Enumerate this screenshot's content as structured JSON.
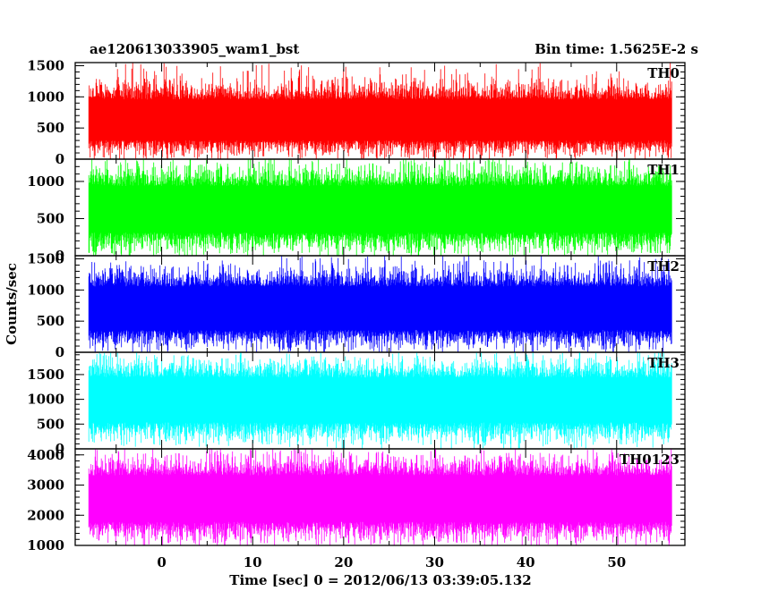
{
  "chart_data": {
    "type": "line",
    "title_left": "ae120613033905_wam1_bst",
    "title_right": "Bin time: 1.5625E-2 s",
    "xlabel": "Time [sec] 0 = 2012/06/13 03:39:05.132",
    "ylabel": "Counts/sec",
    "xlim": [
      -9.5,
      57.5
    ],
    "x_data_range": [
      -8,
      56
    ],
    "x_ticks": [
      0,
      10,
      20,
      30,
      40,
      50
    ],
    "panels": [
      {
        "name": "TH0",
        "color": "#ff0000",
        "ylim": [
          0,
          1550
        ],
        "y_ticks": [
          0,
          500,
          1000,
          1500
        ],
        "baseline_mean": 600,
        "min_typical": 60,
        "max_typical": 1250,
        "max_peak": 1550
      },
      {
        "name": "TH1",
        "color": "#00ff00",
        "ylim": [
          0,
          1300
        ],
        "y_ticks": [
          0,
          500,
          1000
        ],
        "baseline_mean": 620,
        "min_typical": 60,
        "max_typical": 1200,
        "max_peak": 1300
      },
      {
        "name": "TH2",
        "color": "#0000ff",
        "ylim": [
          0,
          1550
        ],
        "y_ticks": [
          0,
          500,
          1000,
          1500
        ],
        "baseline_mean": 700,
        "min_typical": 80,
        "max_typical": 1350,
        "max_peak": 1550
      },
      {
        "name": "TH3",
        "color": "#00ffff",
        "ylim": [
          0,
          1950
        ],
        "y_ticks": [
          0,
          500,
          1000,
          1500
        ],
        "baseline_mean": 1000,
        "min_typical": 150,
        "max_typical": 1800,
        "max_peak": 1950
      },
      {
        "name": "TH0123",
        "color": "#ff00ff",
        "ylim": [
          1000,
          4200
        ],
        "y_ticks": [
          1000,
          2000,
          3000,
          4000
        ],
        "baseline_mean": 2550,
        "min_typical": 1150,
        "max_typical": 3950,
        "max_peak": 4200
      }
    ]
  }
}
